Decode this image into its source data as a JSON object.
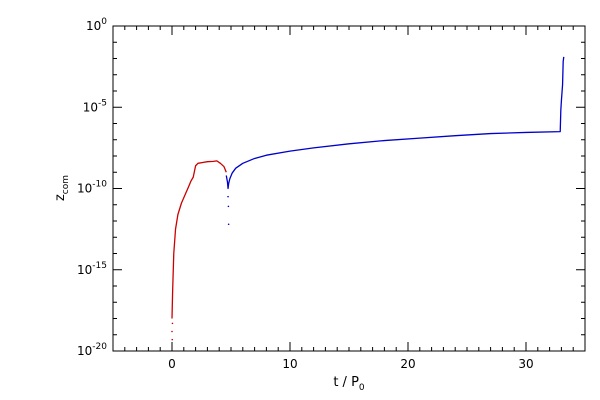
{
  "chart_data": {
    "type": "line",
    "title": "",
    "xlabel": {
      "main": "t / P",
      "sub": "0"
    },
    "ylabel": {
      "main": "z",
      "sub": "com"
    },
    "xlim": [
      -5,
      35
    ],
    "ylim_log10": [
      -20,
      0
    ],
    "yscale": "log",
    "grid": false,
    "x_ticks": [
      {
        "value": 0,
        "label": "0"
      },
      {
        "value": 10,
        "label": "10"
      },
      {
        "value": 20,
        "label": "20"
      },
      {
        "value": 30,
        "label": "30"
      }
    ],
    "x_minor_step": 1,
    "y_ticks": [
      {
        "exp": 0,
        "base": "10",
        "sup": "0"
      },
      {
        "exp": -5,
        "base": "10",
        "sup": "-5"
      },
      {
        "exp": -10,
        "base": "10",
        "sup": "-10"
      },
      {
        "exp": -15,
        "base": "10",
        "sup": "-15"
      },
      {
        "exp": -20,
        "base": "10",
        "sup": "-20"
      }
    ],
    "y_minor_exps": [
      -1,
      -2,
      -3,
      -4,
      -6,
      -7,
      -8,
      -9,
      -11,
      -12,
      -13,
      -14,
      -16,
      -17,
      -18,
      -19
    ],
    "series": [
      {
        "color": "#cc0000",
        "points_log10": [
          [
            0.0,
            -18.0
          ],
          [
            0.05,
            -16.4
          ],
          [
            0.15,
            -14.0
          ],
          [
            0.3,
            -12.5
          ],
          [
            0.5,
            -11.6
          ],
          [
            0.8,
            -10.9
          ],
          [
            1.1,
            -10.4
          ],
          [
            1.4,
            -9.9
          ],
          [
            1.6,
            -9.55
          ],
          [
            1.8,
            -9.3
          ],
          [
            2.0,
            -8.6
          ],
          [
            2.2,
            -8.45
          ],
          [
            2.6,
            -8.4
          ],
          [
            3.0,
            -8.35
          ],
          [
            3.5,
            -8.33
          ],
          [
            3.8,
            -8.3
          ],
          [
            4.1,
            -8.45
          ],
          [
            4.4,
            -8.65
          ],
          [
            4.6,
            -9.0
          ]
        ],
        "scatter_log10": [
          [
            0.0,
            -18.8
          ],
          [
            0.02,
            -19.3
          ],
          [
            0.04,
            -18.3
          ]
        ]
      },
      {
        "color": "#0000cc",
        "points_log10": [
          [
            4.6,
            -9.2
          ],
          [
            4.7,
            -9.6
          ],
          [
            4.75,
            -10.0
          ],
          [
            4.8,
            -9.7
          ],
          [
            4.9,
            -9.4
          ],
          [
            5.1,
            -9.05
          ],
          [
            5.4,
            -8.75
          ],
          [
            6.0,
            -8.45
          ],
          [
            7.0,
            -8.15
          ],
          [
            8.0,
            -7.95
          ],
          [
            10.0,
            -7.7
          ],
          [
            12.0,
            -7.5
          ],
          [
            15.0,
            -7.25
          ],
          [
            18.0,
            -7.05
          ],
          [
            21.0,
            -6.9
          ],
          [
            24.0,
            -6.75
          ],
          [
            27.0,
            -6.62
          ],
          [
            30.0,
            -6.55
          ],
          [
            32.9,
            -6.5
          ],
          [
            32.95,
            -5.2
          ],
          [
            33.0,
            -4.6
          ],
          [
            33.1,
            -3.6
          ],
          [
            33.15,
            -2.2
          ],
          [
            33.2,
            -1.9
          ]
        ],
        "scatter_log10": [
          [
            4.75,
            -10.5
          ],
          [
            4.78,
            -11.1
          ],
          [
            4.8,
            -12.2
          ]
        ]
      }
    ]
  }
}
